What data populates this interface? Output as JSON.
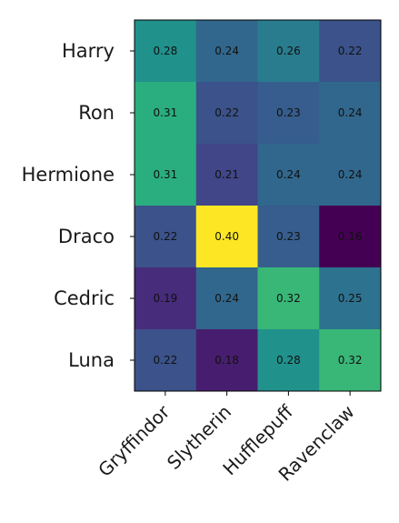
{
  "chart_data": {
    "type": "heatmap",
    "rows": [
      "Harry",
      "Ron",
      "Hermione",
      "Draco",
      "Cedric",
      "Luna"
    ],
    "columns": [
      "Gryffindor",
      "Slytherin",
      "Hufflepuff",
      "Ravenclaw"
    ],
    "values": [
      [
        0.28,
        0.24,
        0.26,
        0.22
      ],
      [
        0.31,
        0.22,
        0.23,
        0.24
      ],
      [
        0.31,
        0.21,
        0.24,
        0.24
      ],
      [
        0.22,
        0.4,
        0.23,
        0.16
      ],
      [
        0.19,
        0.24,
        0.32,
        0.25
      ],
      [
        0.22,
        0.18,
        0.28,
        0.32
      ]
    ],
    "value_labels": [
      [
        "0.28",
        "0.24",
        "0.26",
        "0.22"
      ],
      [
        "0.31",
        "0.22",
        "0.23",
        "0.24"
      ],
      [
        "0.31",
        "0.21",
        "0.24",
        "0.24"
      ],
      [
        "0.22",
        "0.40",
        "0.23",
        "0.16"
      ],
      [
        "0.19",
        "0.24",
        "0.32",
        "0.25"
      ],
      [
        "0.22",
        "0.18",
        "0.28",
        "0.32"
      ]
    ],
    "colormap": "viridis",
    "value_range": [
      0.16,
      0.4
    ],
    "colorbar": false,
    "grid": false,
    "title": "",
    "xlabel": "",
    "ylabel": ""
  }
}
